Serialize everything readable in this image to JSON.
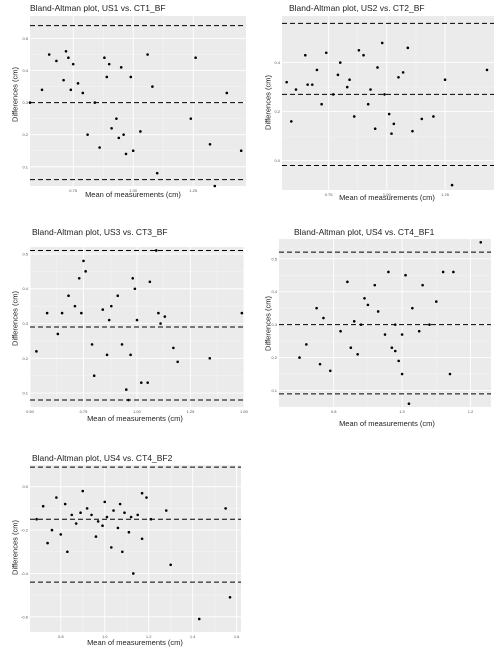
{
  "chart_data": [
    {
      "type": "scatter",
      "title": "Bland-Altman plot, US1 vs. CT1_BF",
      "xlabel": "Mean of measurements (cm)",
      "ylabel": "Differences (cm)",
      "xlim": [
        0.57,
        1.47
      ],
      "ylim": [
        0.04,
        0.57
      ],
      "xticks": [
        "0.75",
        "1.00",
        "1.25"
      ],
      "xtick_values": [
        0.75,
        1.0,
        1.25
      ],
      "yticks": [
        "0.1",
        "0.2",
        "0.3",
        "0.4",
        "0.5"
      ],
      "ytick_values": [
        0.1,
        0.2,
        0.3,
        0.4,
        0.5
      ],
      "mean_line": 0.3,
      "loa_lines": [
        0.06,
        0.54
      ],
      "grid": true,
      "points": [
        [
          0.57,
          0.3
        ],
        [
          0.62,
          0.34
        ],
        [
          0.65,
          0.45
        ],
        [
          0.68,
          0.43
        ],
        [
          0.71,
          0.37
        ],
        [
          0.72,
          0.46
        ],
        [
          0.73,
          0.44
        ],
        [
          0.74,
          0.34
        ],
        [
          0.75,
          0.42
        ],
        [
          0.77,
          0.36
        ],
        [
          0.79,
          0.33
        ],
        [
          0.81,
          0.2
        ],
        [
          0.84,
          0.3
        ],
        [
          0.86,
          0.16
        ],
        [
          0.88,
          0.44
        ],
        [
          0.89,
          0.38
        ],
        [
          0.9,
          0.42
        ],
        [
          0.91,
          0.22
        ],
        [
          0.93,
          0.25
        ],
        [
          0.94,
          0.19
        ],
        [
          0.95,
          0.41
        ],
        [
          0.96,
          0.2
        ],
        [
          0.97,
          0.14
        ],
        [
          0.99,
          0.38
        ],
        [
          1.0,
          0.15
        ],
        [
          1.03,
          0.21
        ],
        [
          1.06,
          0.45
        ],
        [
          1.08,
          0.35
        ],
        [
          1.1,
          0.08
        ],
        [
          1.24,
          0.25
        ],
        [
          1.26,
          0.44
        ],
        [
          1.32,
          0.17
        ],
        [
          1.34,
          0.04
        ],
        [
          1.39,
          0.33
        ],
        [
          1.45,
          0.15
        ]
      ]
    },
    {
      "type": "scatter",
      "title": "Bland-Altman plot, US2 vs. CT2_BF",
      "xlabel": "Mean of measurements (cm)",
      "ylabel": "Differences (cm)",
      "xlim": [
        0.55,
        1.46
      ],
      "ylim": [
        -0.12,
        0.59
      ],
      "xticks": [
        "0.75",
        "1.00",
        "1.25"
      ],
      "xtick_values": [
        0.75,
        1.0,
        1.25
      ],
      "yticks": [
        "0.0",
        "0.2",
        "0.4"
      ],
      "ytick_values": [
        0.0,
        0.2,
        0.4
      ],
      "mean_line": 0.27,
      "loa_lines": [
        -0.02,
        0.56
      ],
      "grid": true,
      "points": [
        [
          0.57,
          0.32
        ],
        [
          0.59,
          0.16
        ],
        [
          0.61,
          0.29
        ],
        [
          0.65,
          0.43
        ],
        [
          0.66,
          0.31
        ],
        [
          0.68,
          0.31
        ],
        [
          0.7,
          0.37
        ],
        [
          0.72,
          0.23
        ],
        [
          0.74,
          0.44
        ],
        [
          0.77,
          0.27
        ],
        [
          0.79,
          0.35
        ],
        [
          0.8,
          0.4
        ],
        [
          0.83,
          0.3
        ],
        [
          0.84,
          0.33
        ],
        [
          0.86,
          0.18
        ],
        [
          0.88,
          0.45
        ],
        [
          0.9,
          0.43
        ],
        [
          0.92,
          0.23
        ],
        [
          0.93,
          0.29
        ],
        [
          0.95,
          0.13
        ],
        [
          0.96,
          0.38
        ],
        [
          0.98,
          0.48
        ],
        [
          0.99,
          0.27
        ],
        [
          1.01,
          0.19
        ],
        [
          1.02,
          0.11
        ],
        [
          1.03,
          0.15
        ],
        [
          1.05,
          0.34
        ],
        [
          1.07,
          0.36
        ],
        [
          1.09,
          0.46
        ],
        [
          1.11,
          0.12
        ],
        [
          1.15,
          0.17
        ],
        [
          1.2,
          0.18
        ],
        [
          1.25,
          0.33
        ],
        [
          1.28,
          -0.1
        ],
        [
          1.43,
          0.37
        ]
      ]
    },
    {
      "type": "scatter",
      "title": "Bland-Altman plot, US3 vs. CT3_BF",
      "xlabel": "Mean of measurements (cm)",
      "ylabel": "Differences (cm)",
      "xlim": [
        0.5,
        1.5
      ],
      "ylim": [
        0.06,
        0.52
      ],
      "xticks": [
        "0.50",
        "0.75",
        "1.00",
        "1.25",
        "1.50"
      ],
      "xtick_values": [
        0.5,
        0.75,
        1.0,
        1.25,
        1.5
      ],
      "yticks": [
        "0.1",
        "0.2",
        "0.3",
        "0.4",
        "0.5"
      ],
      "ytick_values": [
        0.1,
        0.2,
        0.3,
        0.4,
        0.5
      ],
      "mean_line": 0.29,
      "loa_lines": [
        0.08,
        0.51
      ],
      "grid": true,
      "points": [
        [
          0.53,
          0.22
        ],
        [
          0.58,
          0.33
        ],
        [
          0.63,
          0.27
        ],
        [
          0.65,
          0.33
        ],
        [
          0.68,
          0.38
        ],
        [
          0.71,
          0.35
        ],
        [
          0.73,
          0.43
        ],
        [
          0.74,
          0.33
        ],
        [
          0.75,
          0.48
        ],
        [
          0.76,
          0.45
        ],
        [
          0.79,
          0.24
        ],
        [
          0.8,
          0.15
        ],
        [
          0.84,
          0.34
        ],
        [
          0.86,
          0.21
        ],
        [
          0.87,
          0.31
        ],
        [
          0.88,
          0.35
        ],
        [
          0.91,
          0.38
        ],
        [
          0.93,
          0.24
        ],
        [
          0.95,
          0.11
        ],
        [
          0.96,
          0.08
        ],
        [
          0.97,
          0.21
        ],
        [
          0.98,
          0.43
        ],
        [
          0.99,
          0.4
        ],
        [
          1.0,
          0.31
        ],
        [
          1.02,
          0.13
        ],
        [
          1.05,
          0.13
        ],
        [
          1.06,
          0.42
        ],
        [
          1.1,
          0.33
        ],
        [
          1.11,
          0.3
        ],
        [
          1.13,
          0.32
        ],
        [
          1.17,
          0.23
        ],
        [
          1.19,
          0.19
        ],
        [
          1.34,
          0.2
        ],
        [
          1.49,
          0.33
        ],
        [
          1.09,
          0.51
        ]
      ]
    },
    {
      "type": "scatter",
      "title": "Bland-Altman plot, US4 vs. CT4_BF1",
      "xlabel": "Mean of measurements (cm)",
      "ylabel": "Differences (cm)",
      "xlim": [
        0.64,
        1.26
      ],
      "ylim": [
        0.05,
        0.56
      ],
      "xticks": [
        "0.8",
        "1.0",
        "1.2"
      ],
      "xtick_values": [
        0.8,
        1.0,
        1.2
      ],
      "yticks": [
        "0.1",
        "0.2",
        "0.3",
        "0.4",
        "0.5"
      ],
      "ytick_values": [
        0.1,
        0.2,
        0.3,
        0.4,
        0.5
      ],
      "mean_line": 0.3,
      "loa_lines": [
        0.09,
        0.52
      ],
      "grid": true,
      "points": [
        [
          0.7,
          0.2
        ],
        [
          0.72,
          0.24
        ],
        [
          0.75,
          0.35
        ],
        [
          0.76,
          0.18
        ],
        [
          0.77,
          0.32
        ],
        [
          0.79,
          0.16
        ],
        [
          0.82,
          0.28
        ],
        [
          0.84,
          0.43
        ],
        [
          0.85,
          0.23
        ],
        [
          0.86,
          0.31
        ],
        [
          0.88,
          0.3
        ],
        [
          0.89,
          0.38
        ],
        [
          0.9,
          0.36
        ],
        [
          0.92,
          0.42
        ],
        [
          0.93,
          0.34
        ],
        [
          0.95,
          0.27
        ],
        [
          0.96,
          0.46
        ],
        [
          0.97,
          0.23
        ],
        [
          0.98,
          0.3
        ],
        [
          0.99,
          0.19
        ],
        [
          1.0,
          0.15
        ],
        [
          1.01,
          0.45
        ],
        [
          1.02,
          0.06
        ],
        [
          1.03,
          0.35
        ],
        [
          1.05,
          0.28
        ],
        [
          1.06,
          0.42
        ],
        [
          1.08,
          0.3
        ],
        [
          1.1,
          0.37
        ],
        [
          1.12,
          0.46
        ],
        [
          1.14,
          0.15
        ],
        [
          1.15,
          0.46
        ],
        [
          1.23,
          0.55
        ],
        [
          0.98,
          0.22
        ],
        [
          1.0,
          0.27
        ],
        [
          0.87,
          0.21
        ]
      ]
    },
    {
      "type": "scatter",
      "title": "Bland-Altman plot, US4 vs. CT4_BF2",
      "xlabel": "Mean of measurements (cm)",
      "ylabel": "Differences (cm)",
      "xlim": [
        0.66,
        1.62
      ],
      "ylim": [
        -0.67,
        0.1
      ],
      "xticks": [
        "0.8",
        "1.0",
        "1.2",
        "1.4",
        "1.6"
      ],
      "xtick_values": [
        0.8,
        1.0,
        1.2,
        1.4,
        1.6
      ],
      "yticks": [
        "0.0",
        "-0.2",
        "-0.4",
        "-0.6"
      ],
      "ytick_values": [
        0.0,
        -0.2,
        -0.4,
        -0.6
      ],
      "mean_line": -0.15,
      "loa_lines": [
        -0.44,
        0.09
      ],
      "grid": true,
      "points": [
        [
          0.69,
          -0.15
        ],
        [
          0.72,
          -0.09
        ],
        [
          0.74,
          -0.26
        ],
        [
          0.76,
          -0.2
        ],
        [
          0.78,
          -0.05
        ],
        [
          0.8,
          -0.22
        ],
        [
          0.82,
          -0.08
        ],
        [
          0.83,
          -0.3
        ],
        [
          0.85,
          -0.13
        ],
        [
          0.87,
          -0.17
        ],
        [
          0.89,
          -0.12
        ],
        [
          0.9,
          -0.02
        ],
        [
          0.92,
          -0.1
        ],
        [
          0.94,
          -0.13
        ],
        [
          0.96,
          -0.23
        ],
        [
          0.97,
          -0.16
        ],
        [
          0.99,
          -0.18
        ],
        [
          1.0,
          -0.07
        ],
        [
          1.01,
          -0.14
        ],
        [
          1.03,
          -0.28
        ],
        [
          1.04,
          -0.11
        ],
        [
          1.06,
          -0.19
        ],
        [
          1.07,
          -0.08
        ],
        [
          1.08,
          -0.3
        ],
        [
          1.09,
          -0.12
        ],
        [
          1.11,
          -0.21
        ],
        [
          1.12,
          -0.14
        ],
        [
          1.13,
          -0.4
        ],
        [
          1.15,
          -0.13
        ],
        [
          1.17,
          -0.24
        ],
        [
          1.19,
          -0.05
        ],
        [
          1.21,
          -0.15
        ],
        [
          1.28,
          -0.11
        ],
        [
          1.3,
          -0.36
        ],
        [
          1.43,
          -0.61
        ],
        [
          1.55,
          -0.1
        ],
        [
          1.57,
          -0.51
        ],
        [
          1.17,
          -0.03
        ]
      ]
    }
  ]
}
